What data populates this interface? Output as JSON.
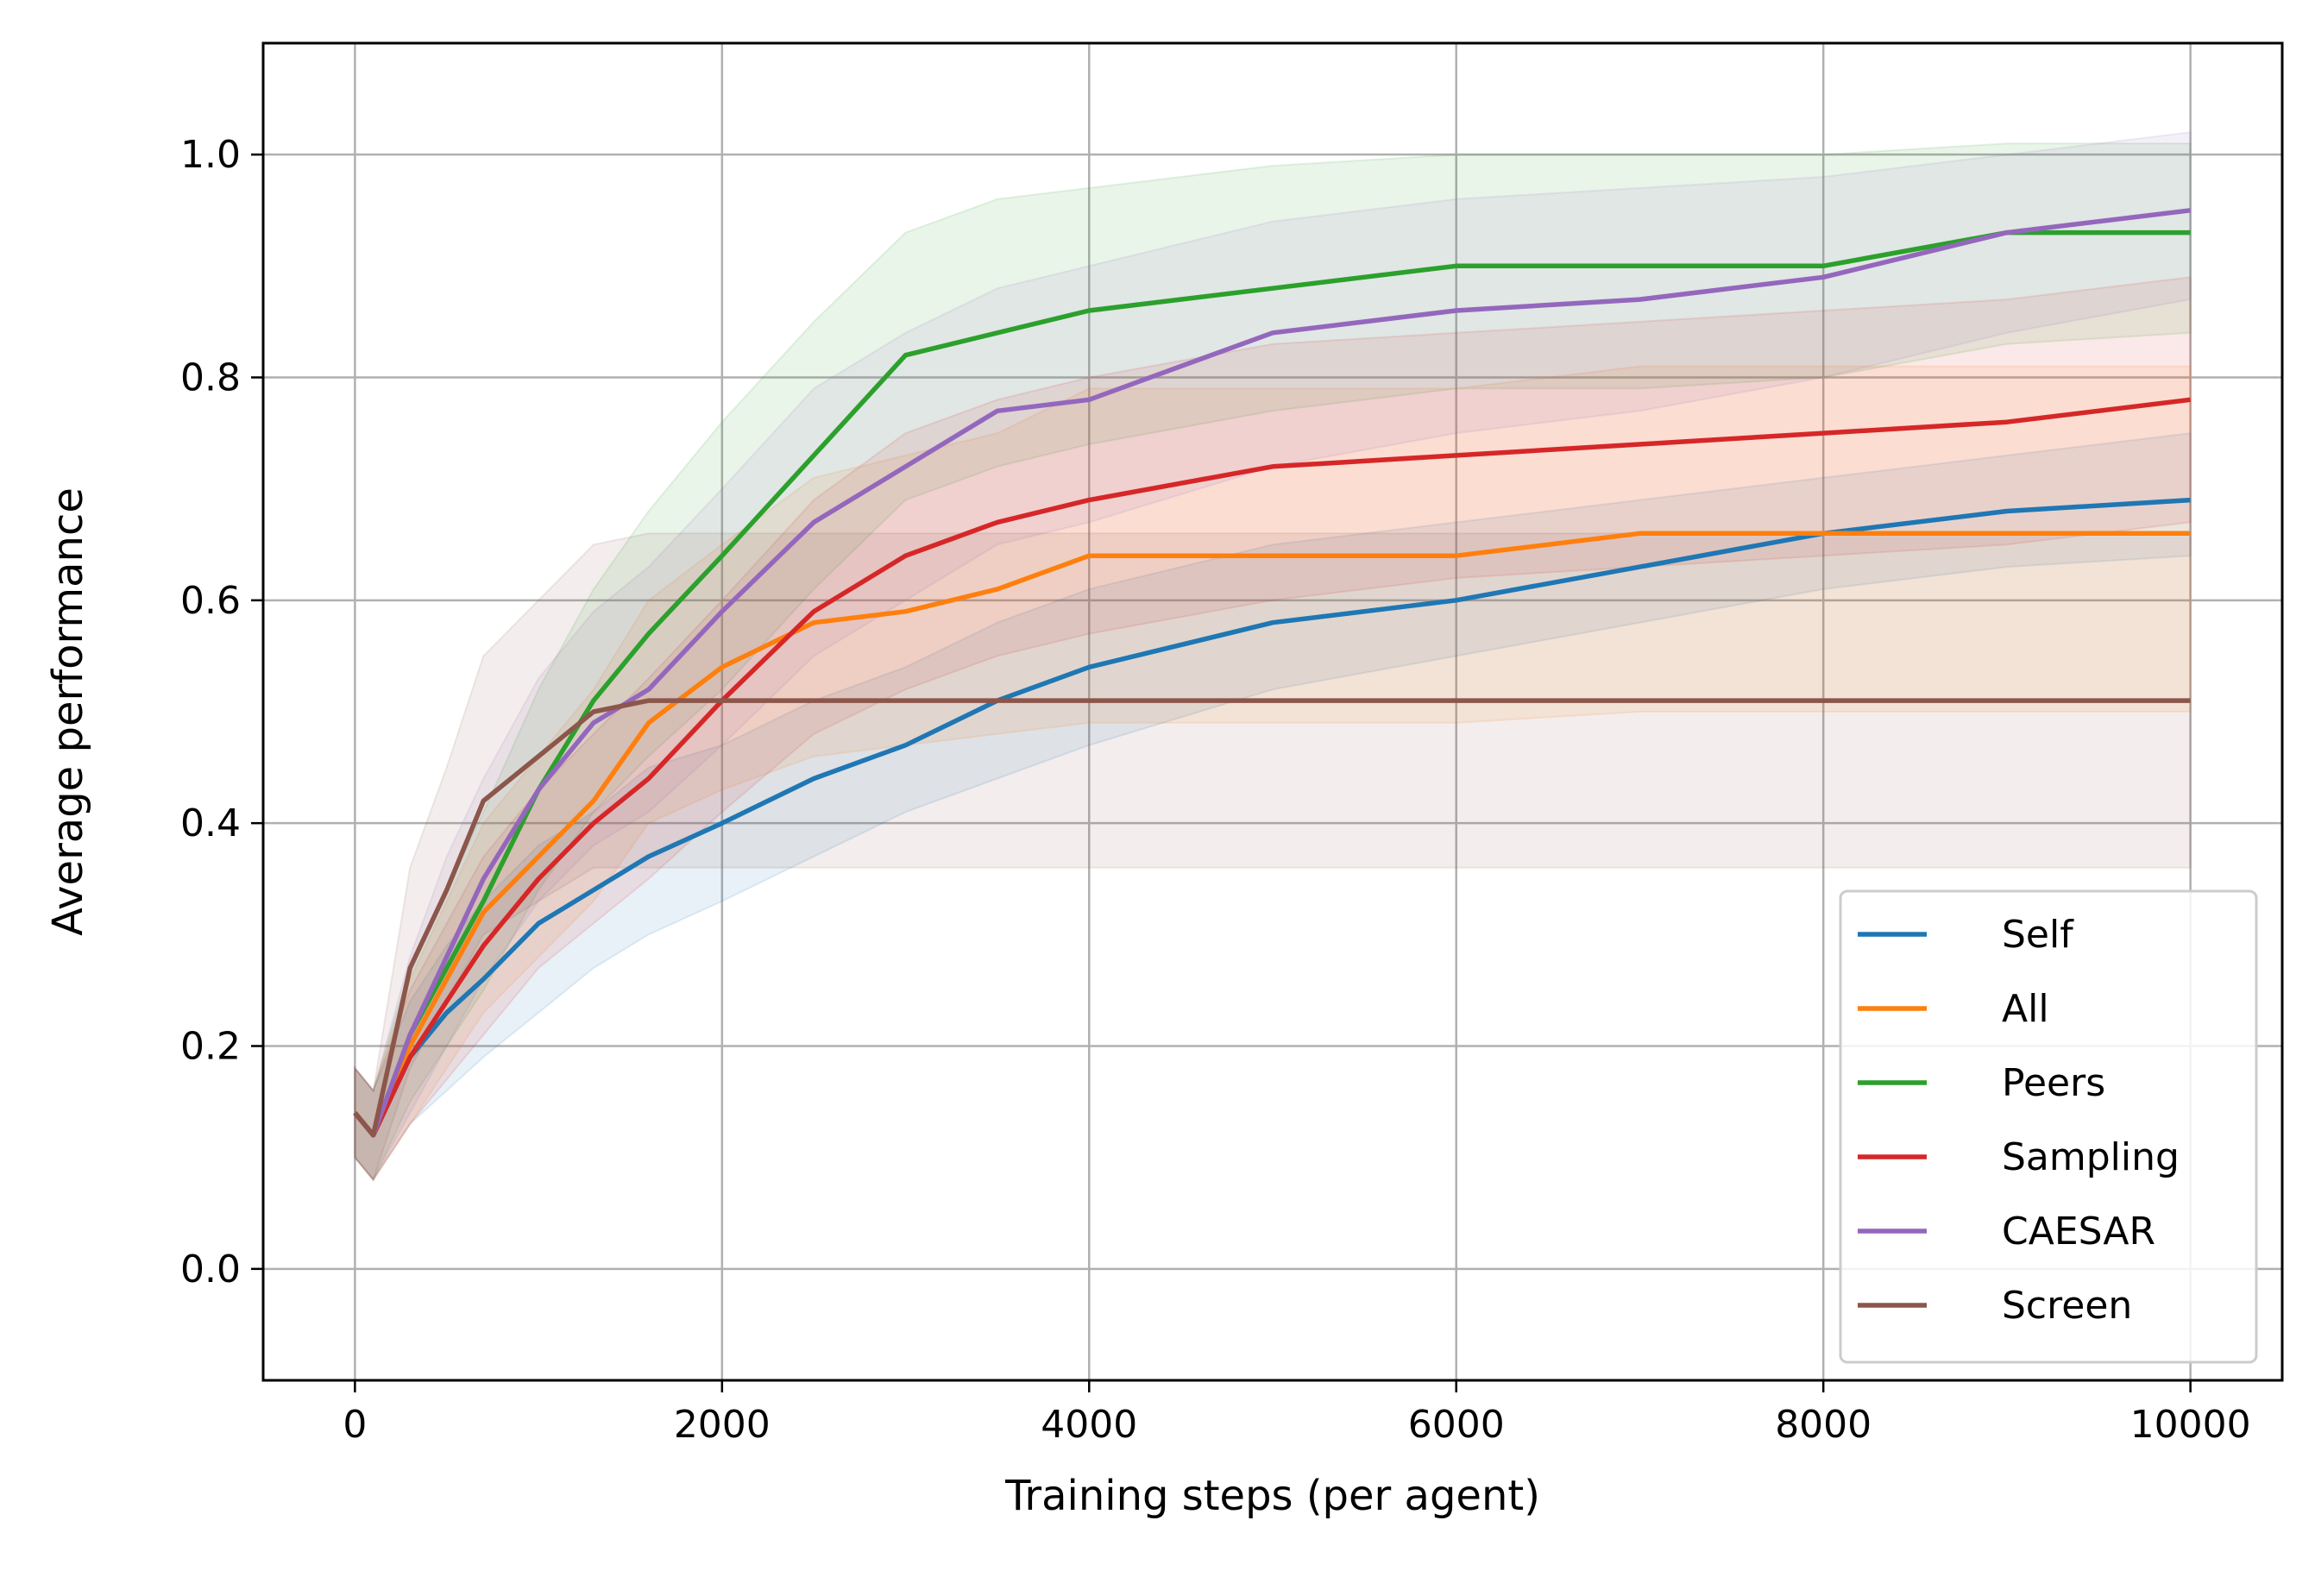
{
  "chart_data": {
    "type": "line",
    "title": "",
    "xlabel": "Training steps (per agent)",
    "ylabel": "Average performance",
    "xlim": [
      -500,
      10500
    ],
    "ylim": [
      -0.1,
      1.1
    ],
    "xticks": [
      0,
      2000,
      4000,
      6000,
      8000,
      10000
    ],
    "xtick_labels": [
      "0",
      "2000",
      "4000",
      "6000",
      "8000",
      "10000"
    ],
    "yticks": [
      0.0,
      0.2,
      0.4,
      0.6,
      0.8,
      1.0
    ],
    "ytick_labels": [
      "0.0",
      "0.2",
      "0.4",
      "0.6",
      "0.8",
      "1.0"
    ],
    "grid": true,
    "legend_position": "lower-right",
    "x": [
      0,
      100,
      300,
      500,
      700,
      1000,
      1300,
      1600,
      2000,
      2500,
      3000,
      3500,
      4000,
      5000,
      6000,
      7000,
      8000,
      9000,
      10000
    ],
    "series": [
      {
        "name": "Self",
        "color": "#1f77b4",
        "values": [
          0.14,
          0.12,
          0.19,
          0.23,
          0.26,
          0.31,
          0.34,
          0.37,
          0.4,
          0.44,
          0.47,
          0.51,
          0.54,
          0.58,
          0.6,
          0.63,
          0.66,
          0.68,
          0.69
        ],
        "lower": [
          0.1,
          0.08,
          0.13,
          0.16,
          0.19,
          0.23,
          0.27,
          0.3,
          0.33,
          0.37,
          0.41,
          0.44,
          0.47,
          0.52,
          0.55,
          0.58,
          0.61,
          0.63,
          0.64
        ],
        "upper": [
          0.18,
          0.16,
          0.24,
          0.29,
          0.33,
          0.38,
          0.41,
          0.45,
          0.47,
          0.51,
          0.54,
          0.58,
          0.61,
          0.65,
          0.67,
          0.69,
          0.71,
          0.73,
          0.75
        ]
      },
      {
        "name": "All",
        "color": "#ff7f0e",
        "values": [
          0.14,
          0.12,
          0.2,
          0.26,
          0.32,
          0.37,
          0.42,
          0.49,
          0.54,
          0.58,
          0.59,
          0.61,
          0.64,
          0.64,
          0.64,
          0.66,
          0.66,
          0.66,
          0.66
        ],
        "lower": [
          0.1,
          0.08,
          0.13,
          0.18,
          0.23,
          0.28,
          0.33,
          0.4,
          0.43,
          0.46,
          0.47,
          0.48,
          0.49,
          0.49,
          0.49,
          0.5,
          0.5,
          0.5,
          0.5
        ],
        "upper": [
          0.18,
          0.16,
          0.26,
          0.33,
          0.4,
          0.46,
          0.52,
          0.6,
          0.65,
          0.71,
          0.73,
          0.75,
          0.79,
          0.79,
          0.79,
          0.81,
          0.81,
          0.81,
          0.81
        ]
      },
      {
        "name": "Peers",
        "color": "#2ca02c",
        "values": [
          0.14,
          0.12,
          0.21,
          0.27,
          0.33,
          0.43,
          0.51,
          0.57,
          0.64,
          0.73,
          0.82,
          0.84,
          0.86,
          0.88,
          0.9,
          0.9,
          0.9,
          0.93,
          0.93
        ],
        "lower": [
          0.1,
          0.08,
          0.15,
          0.2,
          0.25,
          0.34,
          0.41,
          0.46,
          0.52,
          0.61,
          0.69,
          0.72,
          0.74,
          0.77,
          0.79,
          0.79,
          0.8,
          0.83,
          0.84
        ],
        "upper": [
          0.18,
          0.16,
          0.27,
          0.34,
          0.41,
          0.52,
          0.61,
          0.68,
          0.76,
          0.85,
          0.93,
          0.96,
          0.97,
          0.99,
          1.0,
          1.0,
          1.0,
          1.01,
          1.01
        ]
      },
      {
        "name": "Sampling",
        "color": "#d62728",
        "values": [
          0.14,
          0.12,
          0.19,
          0.24,
          0.29,
          0.35,
          0.4,
          0.44,
          0.51,
          0.59,
          0.64,
          0.67,
          0.69,
          0.72,
          0.73,
          0.74,
          0.75,
          0.76,
          0.78
        ],
        "lower": [
          0.1,
          0.08,
          0.13,
          0.17,
          0.21,
          0.27,
          0.31,
          0.35,
          0.41,
          0.48,
          0.52,
          0.55,
          0.57,
          0.6,
          0.62,
          0.63,
          0.64,
          0.65,
          0.67
        ],
        "upper": [
          0.18,
          0.16,
          0.25,
          0.31,
          0.37,
          0.43,
          0.48,
          0.53,
          0.6,
          0.69,
          0.75,
          0.78,
          0.8,
          0.83,
          0.84,
          0.85,
          0.86,
          0.87,
          0.89
        ]
      },
      {
        "name": "CAESAR",
        "color": "#9467bd",
        "values": [
          0.14,
          0.12,
          0.21,
          0.28,
          0.35,
          0.43,
          0.49,
          0.52,
          0.59,
          0.67,
          0.72,
          0.77,
          0.78,
          0.84,
          0.86,
          0.87,
          0.89,
          0.93,
          0.95
        ],
        "lower": [
          0.1,
          0.08,
          0.14,
          0.2,
          0.26,
          0.33,
          0.38,
          0.41,
          0.47,
          0.55,
          0.6,
          0.65,
          0.67,
          0.72,
          0.75,
          0.77,
          0.8,
          0.84,
          0.87
        ],
        "upper": [
          0.18,
          0.16,
          0.28,
          0.37,
          0.44,
          0.53,
          0.59,
          0.63,
          0.7,
          0.79,
          0.84,
          0.88,
          0.9,
          0.94,
          0.96,
          0.97,
          0.98,
          1.0,
          1.02
        ]
      },
      {
        "name": "Screen",
        "color": "#8c564b",
        "values": [
          0.14,
          0.12,
          0.27,
          0.34,
          0.42,
          0.46,
          0.5,
          0.51,
          0.51,
          0.51,
          0.51,
          0.51,
          0.51,
          0.51,
          0.51,
          0.51,
          0.51,
          0.51,
          0.51
        ],
        "lower": [
          0.1,
          0.08,
          0.18,
          0.24,
          0.3,
          0.33,
          0.36,
          0.36,
          0.36,
          0.36,
          0.36,
          0.36,
          0.36,
          0.36,
          0.36,
          0.36,
          0.36,
          0.36,
          0.36
        ],
        "upper": [
          0.18,
          0.16,
          0.36,
          0.45,
          0.55,
          0.6,
          0.65,
          0.66,
          0.66,
          0.66,
          0.66,
          0.66,
          0.66,
          0.66,
          0.66,
          0.66,
          0.66,
          0.66,
          0.66
        ]
      }
    ]
  }
}
